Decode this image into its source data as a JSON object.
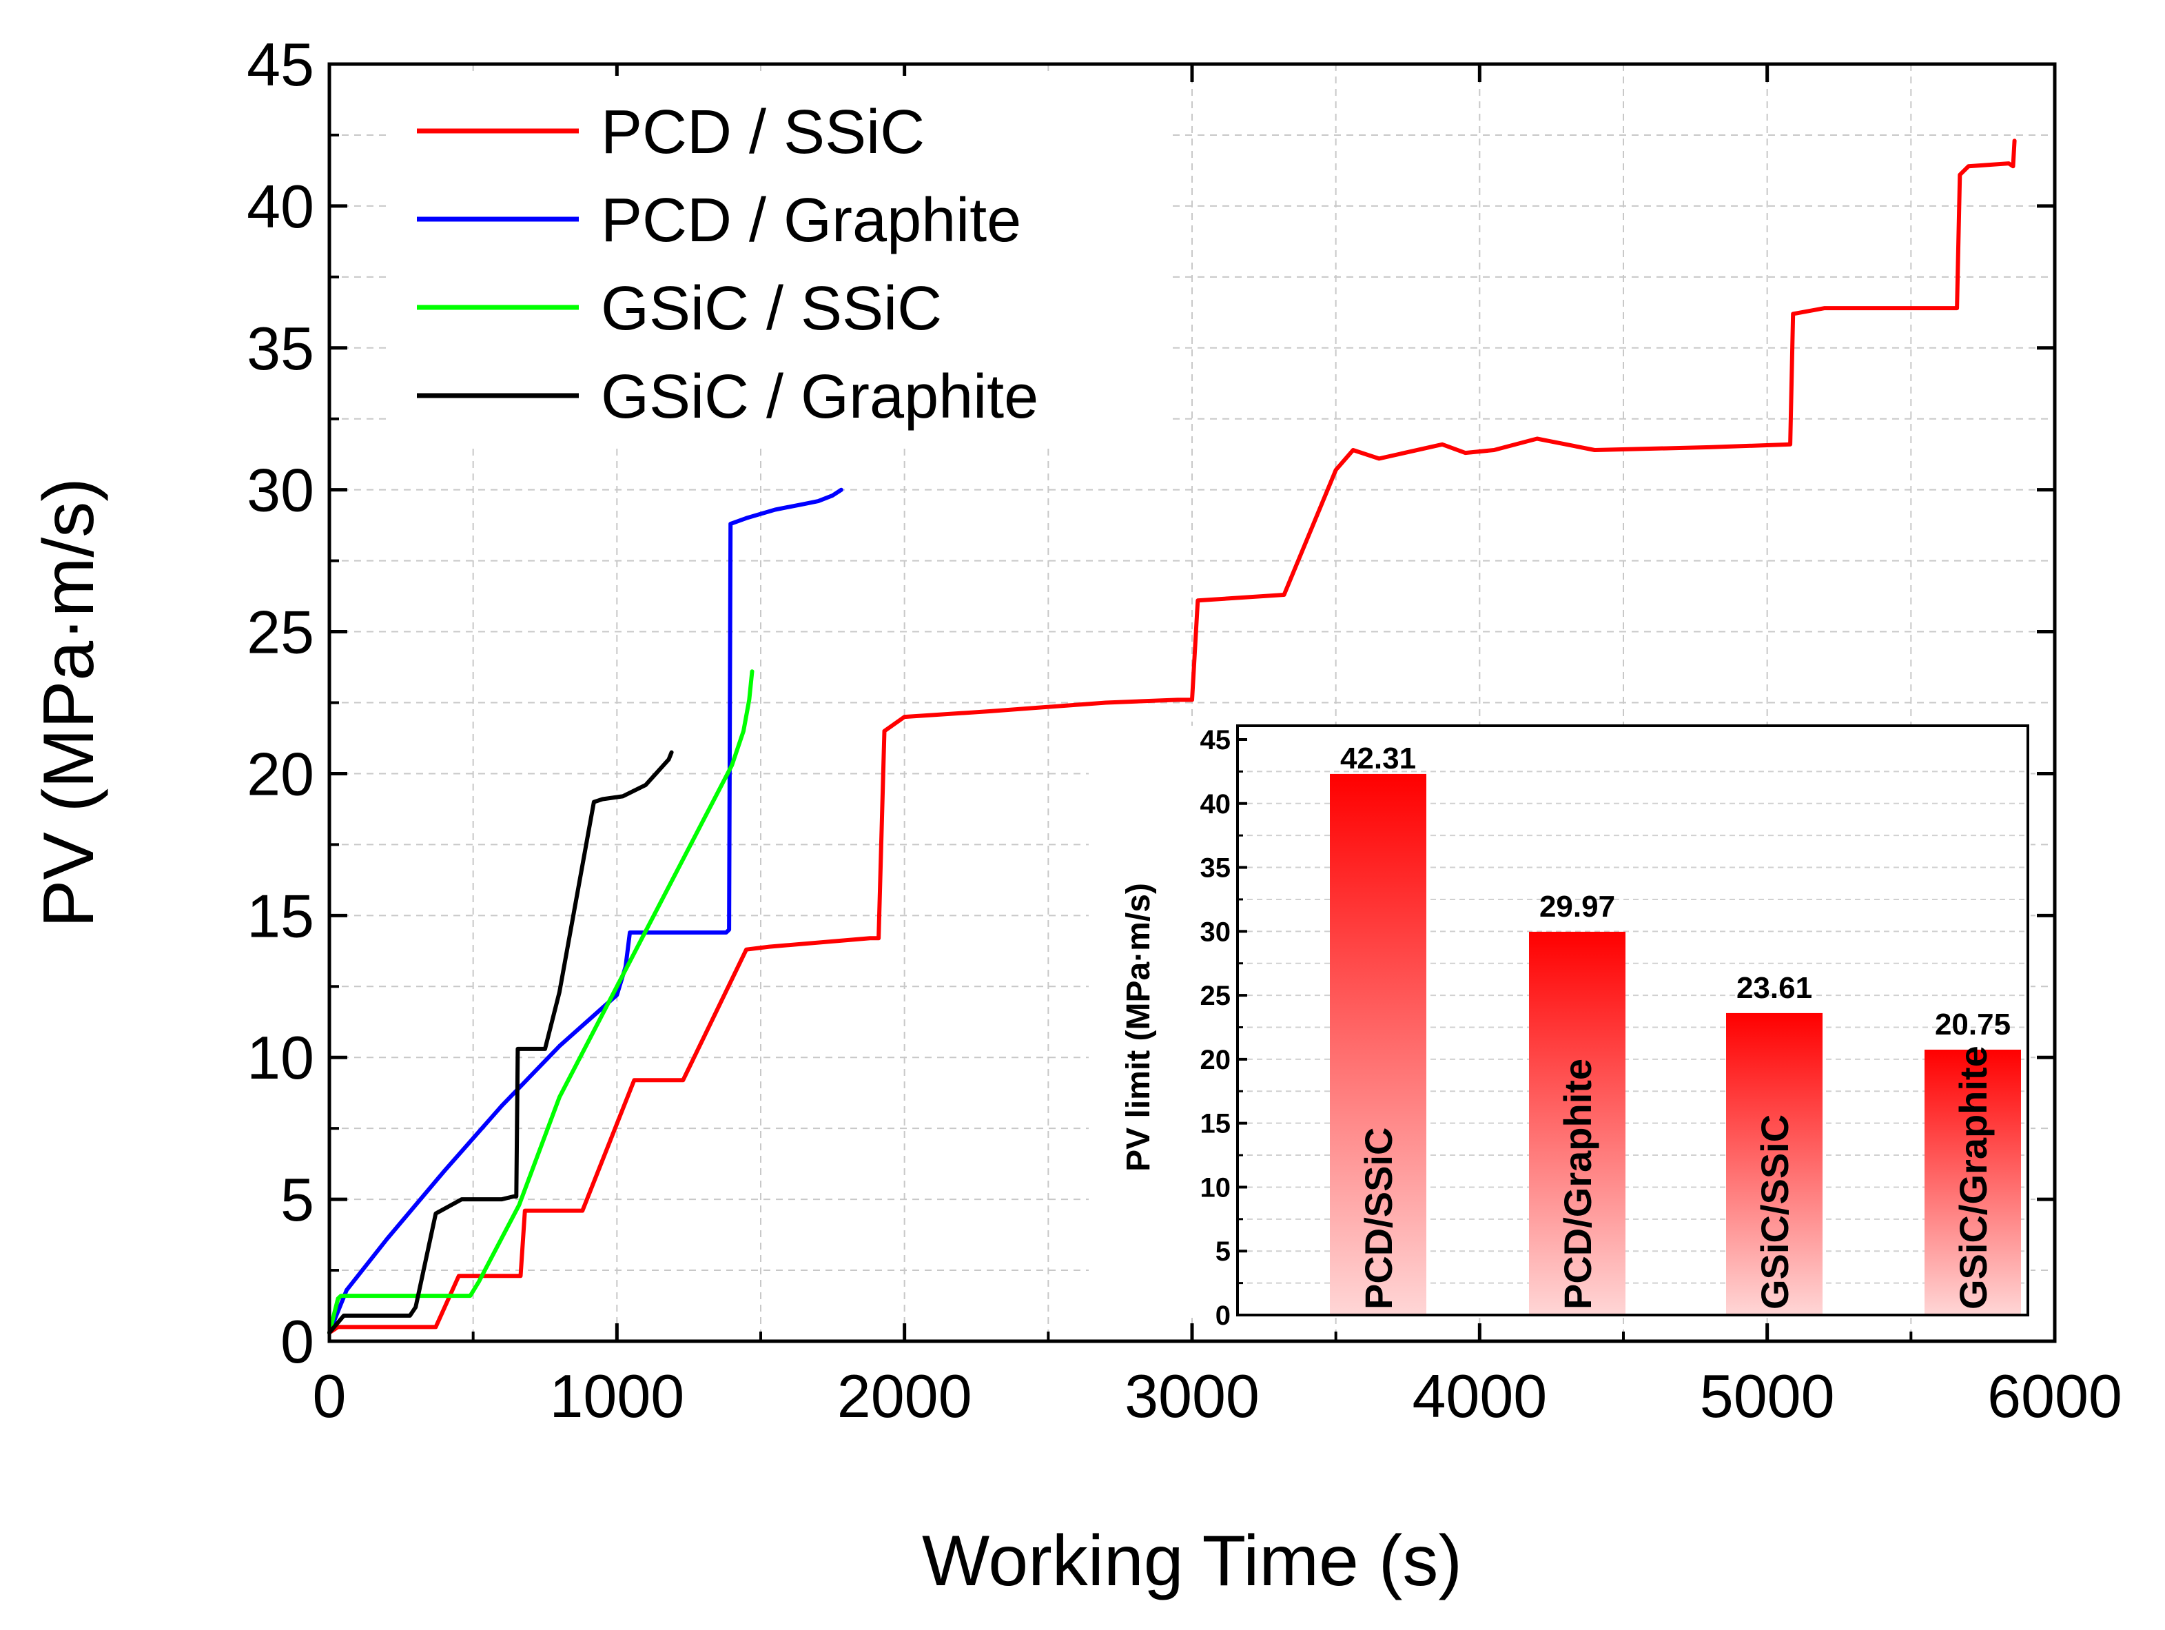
{
  "chart_data": [
    {
      "type": "line",
      "title": "",
      "xlabel": "Working Time (s)",
      "ylabel": "PV (MPa·m/s)",
      "xlim": [
        0,
        6000
      ],
      "ylim": [
        0,
        45
      ],
      "xticks": [
        0,
        1000,
        2000,
        3000,
        4000,
        5000,
        6000
      ],
      "yticks": [
        0,
        5,
        10,
        15,
        20,
        25,
        30,
        35,
        40,
        45
      ],
      "grid": true,
      "legend_position": "top-left",
      "series": [
        {
          "name": "PCD / SSiC",
          "color": "#ff0000",
          "x": [
            0,
            30,
            370,
            450,
            530,
            650,
            665,
            680,
            880,
            1060,
            1230,
            1450,
            1530,
            1880,
            1910,
            1930,
            2000,
            2300,
            2700,
            2950,
            3000,
            3020,
            3320,
            3500,
            3560,
            3650,
            3870,
            3950,
            4050,
            4200,
            4400,
            4800,
            5080,
            5090,
            5200,
            5660,
            5670,
            5700,
            5840,
            5855,
            5860
          ],
          "y": [
            0.3,
            0.5,
            0.5,
            2.3,
            2.3,
            2.3,
            2.3,
            4.6,
            4.6,
            9.2,
            9.2,
            13.8,
            13.9,
            14.2,
            14.2,
            21.5,
            22.0,
            22.2,
            22.5,
            22.6,
            22.6,
            26.1,
            26.3,
            30.7,
            31.4,
            31.1,
            31.6,
            31.3,
            31.4,
            31.8,
            31.4,
            31.5,
            31.6,
            36.2,
            36.4,
            36.4,
            41.1,
            41.4,
            41.5,
            41.4,
            42.3
          ]
        },
        {
          "name": "PCD / Graphite",
          "color": "#0000ff",
          "x": [
            0,
            60,
            200,
            400,
            600,
            800,
            1000,
            1030,
            1045,
            1100,
            1200,
            1300,
            1380,
            1390,
            1395,
            1450,
            1550,
            1650,
            1700,
            1750,
            1780
          ],
          "y": [
            0.3,
            1.8,
            3.6,
            6.0,
            8.3,
            10.4,
            12.2,
            13.2,
            14.4,
            14.4,
            14.4,
            14.4,
            14.4,
            14.5,
            28.8,
            29.0,
            29.3,
            29.5,
            29.6,
            29.8,
            30.0
          ],
          "direction": ""
        },
        {
          "name": "GSiC / SSiC",
          "color": "#00ff00",
          "x": [
            0,
            30,
            40,
            200,
            350,
            490,
            520,
            660,
            800,
            1000,
            1200,
            1400,
            1440,
            1460,
            1470
          ],
          "y": [
            0.3,
            1.5,
            1.6,
            1.6,
            1.6,
            1.6,
            2.1,
            4.8,
            8.6,
            12.5,
            16.4,
            20.3,
            21.5,
            22.6,
            23.6
          ]
        },
        {
          "name": "GSiC / Graphite",
          "color": "#000000",
          "x": [
            0,
            50,
            150,
            280,
            300,
            370,
            460,
            600,
            640,
            650,
            655,
            750,
            800,
            920,
            950,
            1020,
            1100,
            1180,
            1190
          ],
          "y": [
            0.3,
            0.9,
            0.9,
            0.9,
            1.2,
            4.5,
            5.0,
            5.0,
            5.1,
            5.1,
            10.3,
            10.3,
            12.3,
            19.0,
            19.1,
            19.2,
            19.6,
            20.5,
            20.75
          ]
        }
      ]
    },
    {
      "type": "bar",
      "title": "",
      "xlabel": "",
      "ylabel": "PV limit (MPa·m/s)",
      "ylim": [
        0,
        45
      ],
      "yticks": [
        0,
        5,
        10,
        15,
        20,
        25,
        30,
        35,
        40,
        45
      ],
      "categories": [
        "PCD/SSiC",
        "PCD/Graphite",
        "GSiC/SSiC",
        "GSiC/Graphite"
      ],
      "values": [
        42.31,
        29.97,
        23.61,
        20.75
      ],
      "value_labels": [
        "42.31",
        "29.97",
        "23.61",
        "20.75"
      ],
      "bar_color_top": "#ff0000",
      "bar_color_bottom": "#ffd6d6"
    }
  ]
}
